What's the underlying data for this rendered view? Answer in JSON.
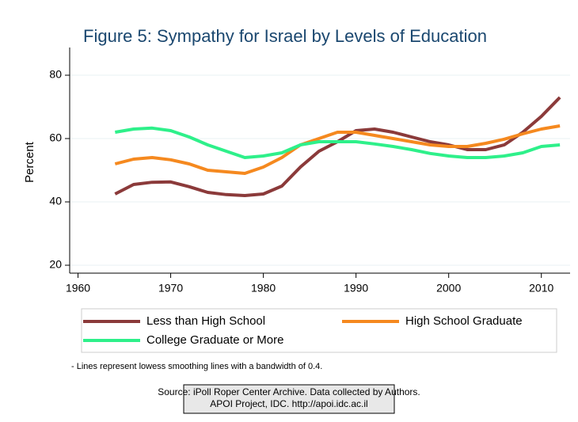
{
  "chart_data": {
    "type": "line",
    "title": "Figure 5: Sympathy for Israel by Levels of Education",
    "y_label": "Percent",
    "x": [
      1964,
      1966,
      1968,
      1970,
      1972,
      1974,
      1976,
      1978,
      1980,
      1982,
      1984,
      1986,
      1988,
      1990,
      1992,
      1994,
      1996,
      1998,
      2000,
      2002,
      2004,
      2006,
      2008,
      2010,
      2012
    ],
    "series": [
      {
        "name": "Less than High School",
        "color": "#8b3a3a",
        "values": [
          42.5,
          45.5,
          46.2,
          46.3,
          44.8,
          43,
          42.3,
          42,
          42.5,
          45,
          51,
          56,
          59,
          62.5,
          63,
          62,
          60.5,
          59,
          58,
          56.5,
          56.5,
          58,
          62,
          67,
          73
        ]
      },
      {
        "name": "High School Graduate",
        "color": "#f5891f",
        "values": [
          52,
          53.5,
          54,
          53.3,
          52,
          50,
          49.5,
          49,
          51,
          54,
          58,
          60,
          62,
          62,
          61,
          60,
          59,
          58,
          57.5,
          57.5,
          58.5,
          59.8,
          61.5,
          63,
          64
        ]
      },
      {
        "name": "College Graduate or More",
        "color": "#2ef08a",
        "values": [
          62,
          63,
          63.3,
          62.5,
          60.5,
          58,
          56,
          54,
          54.5,
          55.5,
          58,
          59,
          59,
          59,
          58.3,
          57.5,
          56.5,
          55.3,
          54.5,
          54,
          54,
          54.5,
          55.5,
          57.5,
          58
        ]
      }
    ],
    "xlim": [
      1959.1,
      2013.1
    ],
    "xticks": [
      1960,
      1970,
      1980,
      1990,
      2000,
      2010
    ],
    "ylim": [
      17.5,
      88.75
    ],
    "yticks": [
      20,
      40,
      60,
      80
    ],
    "grid": true,
    "note": "- Lines represent lowess smoothing lines with a bandwidth of 0.4.",
    "source": [
      "Source: iPoll Roper Center Archive. Data collected by Authors.",
      "APOI Project, IDC. http://apoi.idc.ac.il"
    ]
  }
}
